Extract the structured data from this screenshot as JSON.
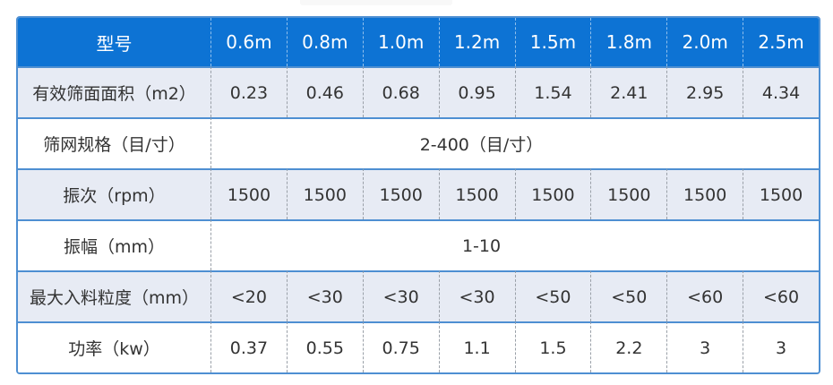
{
  "page": {
    "background_color": "#ffffff"
  },
  "colors": {
    "header_bg": "#0d73d4",
    "header_text": "#ffffff",
    "row_alt_bg": "#e7ebf4",
    "row_white_bg": "#ffffff",
    "border_blue": "#4e8fd2",
    "dashed_separator_gray": "#9aa0a8",
    "dashed_separator_header": "rgba(255,255,255,0.55)",
    "body_text": "#333333"
  },
  "table": {
    "header": {
      "label": "型号",
      "columns": [
        "0.6m",
        "0.8m",
        "1.0m",
        "1.2m",
        "1.5m",
        "1.8m",
        "2.0m",
        "2.5m"
      ]
    },
    "rows": [
      {
        "label": "有效筛面面积（m2）",
        "type": "values",
        "values": [
          "0.23",
          "0.46",
          "0.68",
          "0.95",
          "1.54",
          "2.41",
          "2.95",
          "4.34"
        ]
      },
      {
        "label": "筛网规格（目/寸）",
        "type": "merged",
        "value": "2-400（目/寸）"
      },
      {
        "label": "振次（rpm）",
        "type": "values",
        "values": [
          "1500",
          "1500",
          "1500",
          "1500",
          "1500",
          "1500",
          "1500",
          "1500"
        ]
      },
      {
        "label": "振幅（mm）",
        "type": "merged",
        "value": "1-10"
      },
      {
        "label": "最大入料粒度（mm）",
        "type": "values",
        "values": [
          "<20",
          "<30",
          "<30",
          "<30",
          "<50",
          "<50",
          "<60",
          "<60"
        ]
      },
      {
        "label": "功率（kw）",
        "type": "values",
        "values": [
          "0.37",
          "0.55",
          "0.75",
          "1.1",
          "1.5",
          "2.2",
          "3",
          "3"
        ]
      }
    ]
  }
}
